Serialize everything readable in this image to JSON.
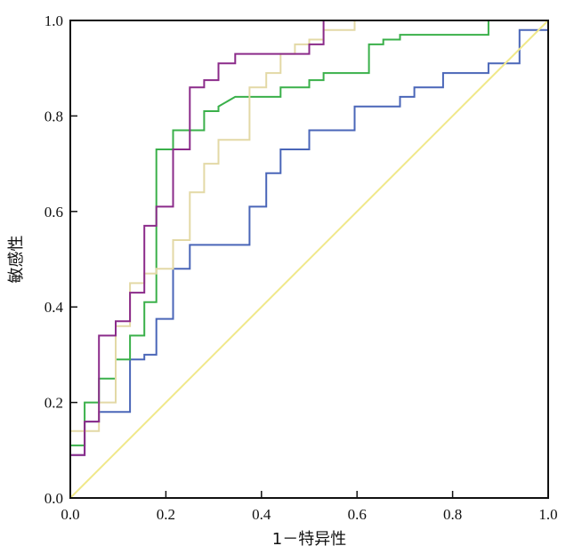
{
  "chart_data": {
    "type": "line",
    "title": "",
    "xlabel": "1－特异性",
    "ylabel": "敏感性",
    "xlim": [
      0,
      1
    ],
    "ylim": [
      0,
      1
    ],
    "xticks": [
      "0.0",
      "0.2",
      "0.4",
      "0.6",
      "0.8",
      "1.0"
    ],
    "yticks": [
      "0.0",
      "0.2",
      "0.4",
      "0.6",
      "0.8",
      "1.0"
    ],
    "grid": false,
    "legend": "none",
    "series": [
      {
        "color": "#4a66b8",
        "points": [
          [
            0,
            0
          ],
          [
            0,
            0.09
          ],
          [
            0.03,
            0.09
          ],
          [
            0.03,
            0.16
          ],
          [
            0.06,
            0.16
          ],
          [
            0.06,
            0.18
          ],
          [
            0.125,
            0.18
          ],
          [
            0.125,
            0.29
          ],
          [
            0.155,
            0.29
          ],
          [
            0.155,
            0.3
          ],
          [
            0.18,
            0.3
          ],
          [
            0.18,
            0.375
          ],
          [
            0.215,
            0.375
          ],
          [
            0.215,
            0.48
          ],
          [
            0.25,
            0.48
          ],
          [
            0.25,
            0.53
          ],
          [
            0.375,
            0.53
          ],
          [
            0.375,
            0.61
          ],
          [
            0.41,
            0.61
          ],
          [
            0.41,
            0.68
          ],
          [
            0.44,
            0.68
          ],
          [
            0.44,
            0.73
          ],
          [
            0.5,
            0.73
          ],
          [
            0.5,
            0.77
          ],
          [
            0.595,
            0.77
          ],
          [
            0.595,
            0.82
          ],
          [
            0.69,
            0.82
          ],
          [
            0.69,
            0.84
          ],
          [
            0.72,
            0.84
          ],
          [
            0.72,
            0.86
          ],
          [
            0.78,
            0.86
          ],
          [
            0.78,
            0.89
          ],
          [
            0.875,
            0.89
          ],
          [
            0.875,
            0.91
          ],
          [
            0.94,
            0.91
          ],
          [
            0.94,
            0.98
          ],
          [
            1,
            0.98
          ],
          [
            1,
            1
          ]
        ]
      },
      {
        "color": "#3ab04a",
        "points": [
          [
            0,
            0
          ],
          [
            0,
            0.11
          ],
          [
            0.03,
            0.11
          ],
          [
            0.03,
            0.2
          ],
          [
            0.06,
            0.2
          ],
          [
            0.06,
            0.25
          ],
          [
            0.095,
            0.25
          ],
          [
            0.095,
            0.29
          ],
          [
            0.125,
            0.29
          ],
          [
            0.125,
            0.34
          ],
          [
            0.155,
            0.34
          ],
          [
            0.155,
            0.41
          ],
          [
            0.18,
            0.41
          ],
          [
            0.18,
            0.73
          ],
          [
            0.215,
            0.73
          ],
          [
            0.215,
            0.77
          ],
          [
            0.28,
            0.77
          ],
          [
            0.28,
            0.81
          ],
          [
            0.31,
            0.81
          ],
          [
            0.31,
            0.82
          ],
          [
            0.345,
            0.84
          ],
          [
            0.44,
            0.84
          ],
          [
            0.44,
            0.86
          ],
          [
            0.5,
            0.86
          ],
          [
            0.5,
            0.875
          ],
          [
            0.53,
            0.875
          ],
          [
            0.53,
            0.89
          ],
          [
            0.625,
            0.89
          ],
          [
            0.625,
            0.95
          ],
          [
            0.655,
            0.95
          ],
          [
            0.655,
            0.96
          ],
          [
            0.69,
            0.96
          ],
          [
            0.69,
            0.97
          ],
          [
            0.875,
            0.97
          ],
          [
            0.875,
            1
          ],
          [
            1,
            1
          ]
        ]
      },
      {
        "color": "#e3d9a6",
        "points": [
          [
            0,
            0
          ],
          [
            0,
            0.14
          ],
          [
            0.06,
            0.14
          ],
          [
            0.06,
            0.2
          ],
          [
            0.095,
            0.2
          ],
          [
            0.095,
            0.36
          ],
          [
            0.125,
            0.36
          ],
          [
            0.125,
            0.45
          ],
          [
            0.155,
            0.45
          ],
          [
            0.155,
            0.47
          ],
          [
            0.18,
            0.47
          ],
          [
            0.18,
            0.48
          ],
          [
            0.215,
            0.48
          ],
          [
            0.215,
            0.54
          ],
          [
            0.25,
            0.54
          ],
          [
            0.25,
            0.64
          ],
          [
            0.28,
            0.64
          ],
          [
            0.28,
            0.7
          ],
          [
            0.31,
            0.7
          ],
          [
            0.31,
            0.75
          ],
          [
            0.375,
            0.75
          ],
          [
            0.375,
            0.86
          ],
          [
            0.41,
            0.86
          ],
          [
            0.41,
            0.89
          ],
          [
            0.44,
            0.89
          ],
          [
            0.44,
            0.93
          ],
          [
            0.47,
            0.93
          ],
          [
            0.47,
            0.95
          ],
          [
            0.5,
            0.95
          ],
          [
            0.5,
            0.96
          ],
          [
            0.53,
            0.96
          ],
          [
            0.53,
            0.98
          ],
          [
            0.595,
            0.98
          ],
          [
            0.595,
            1
          ],
          [
            1,
            1
          ]
        ]
      },
      {
        "color": "#8b2b8a",
        "points": [
          [
            0,
            0
          ],
          [
            0,
            0.09
          ],
          [
            0.03,
            0.09
          ],
          [
            0.03,
            0.16
          ],
          [
            0.06,
            0.16
          ],
          [
            0.06,
            0.34
          ],
          [
            0.095,
            0.34
          ],
          [
            0.095,
            0.37
          ],
          [
            0.125,
            0.37
          ],
          [
            0.125,
            0.43
          ],
          [
            0.155,
            0.43
          ],
          [
            0.155,
            0.57
          ],
          [
            0.18,
            0.57
          ],
          [
            0.18,
            0.61
          ],
          [
            0.215,
            0.61
          ],
          [
            0.215,
            0.73
          ],
          [
            0.25,
            0.73
          ],
          [
            0.25,
            0.86
          ],
          [
            0.28,
            0.86
          ],
          [
            0.28,
            0.875
          ],
          [
            0.31,
            0.875
          ],
          [
            0.31,
            0.91
          ],
          [
            0.345,
            0.91
          ],
          [
            0.345,
            0.93
          ],
          [
            0.5,
            0.93
          ],
          [
            0.5,
            0.95
          ],
          [
            0.53,
            0.95
          ],
          [
            0.53,
            1
          ],
          [
            1,
            1
          ]
        ]
      },
      {
        "color": "#f0e88a",
        "points": [
          [
            0,
            0
          ],
          [
            1,
            1
          ]
        ]
      }
    ]
  }
}
